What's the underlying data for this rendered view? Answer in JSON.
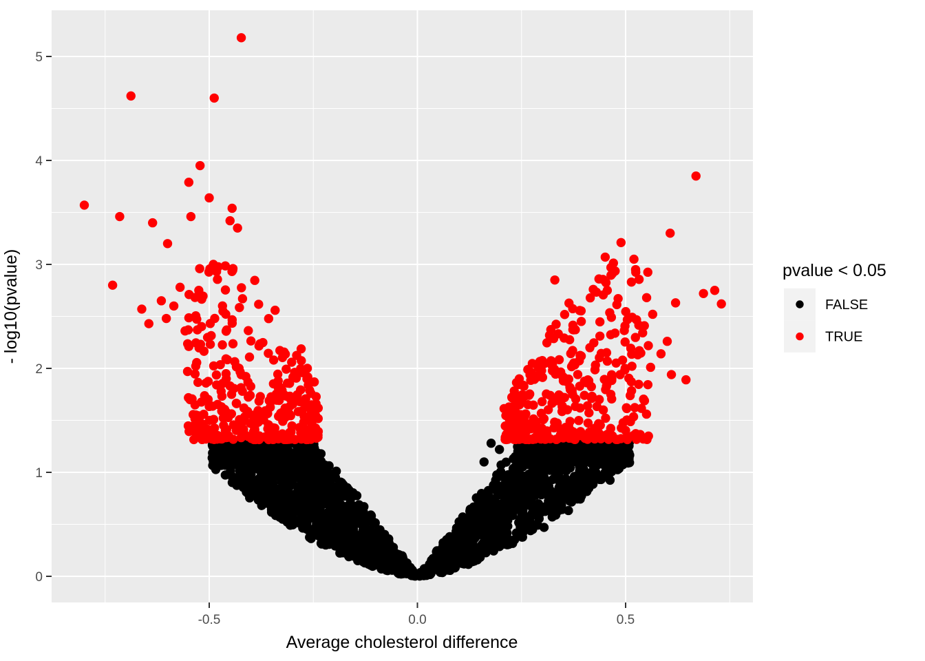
{
  "chart_data": {
    "type": "scatter",
    "title": "",
    "xlabel": "Average cholesterol difference",
    "ylabel": "- log10(pvalue)",
    "xlim": [
      -0.8785,
      0.8058
    ],
    "ylim": [
      -0.2517,
      5.4437
    ],
    "x_ticks": {
      "values": [
        -0.5,
        0.0,
        0.5
      ],
      "labels": [
        "-0.5",
        "0.0",
        "0.5"
      ]
    },
    "y_ticks": {
      "values": [
        0,
        1,
        2,
        3,
        4,
        5
      ],
      "labels": [
        "0",
        "1",
        "2",
        "3",
        "4",
        "5"
      ]
    },
    "grid": {
      "x_minor": [
        -0.75,
        -0.25,
        0.25,
        0.75
      ],
      "y_minor": [
        0.5,
        1.5,
        2.5,
        3.5,
        4.5
      ],
      "major_color": "#FFFFFF",
      "minor_color": "#FFFFFF",
      "major_width": 2,
      "minor_width": 1
    },
    "panel_background": "#EBEBEB",
    "point_radius": 6.7,
    "series": [
      {
        "name": "FALSE",
        "color": "#000000"
      },
      {
        "name": "TRUE",
        "color": "#FF0000"
      }
    ],
    "significance_cutoff": {
      "pvalue": 0.05,
      "neg_log10": 1.301
    },
    "notable_points_true": [
      [
        -0.423,
        5.18
      ],
      [
        -0.688,
        4.62
      ],
      [
        -0.488,
        4.6
      ],
      [
        -0.522,
        3.95
      ],
      [
        -0.549,
        3.79
      ],
      [
        -0.5,
        3.64
      ],
      [
        -0.445,
        3.54
      ],
      [
        -0.8,
        3.57
      ],
      [
        -0.715,
        3.46
      ],
      [
        -0.636,
        3.4
      ],
      [
        -0.544,
        3.46
      ],
      [
        -0.45,
        3.42
      ],
      [
        -0.432,
        3.35
      ],
      [
        -0.6,
        3.2
      ],
      [
        -0.732,
        2.8
      ],
      [
        -0.49,
        3.0
      ],
      [
        -0.443,
        2.96
      ],
      [
        -0.42,
        2.67
      ],
      [
        -0.57,
        2.78
      ],
      [
        -0.585,
        2.6
      ],
      [
        -0.615,
        2.65
      ],
      [
        -0.645,
        2.43
      ],
      [
        -0.662,
        2.57
      ],
      [
        -0.603,
        2.48
      ],
      [
        -0.558,
        2.36
      ],
      [
        -0.525,
        2.75
      ],
      [
        0.669,
        3.85
      ],
      [
        0.607,
        3.3
      ],
      [
        0.489,
        3.21
      ],
      [
        0.451,
        3.07
      ],
      [
        0.52,
        3.05
      ],
      [
        0.524,
        2.95
      ],
      [
        0.436,
        2.86
      ],
      [
        0.514,
        2.83
      ],
      [
        0.456,
        2.75
      ],
      [
        0.687,
        2.72
      ],
      [
        0.714,
        2.75
      ],
      [
        0.73,
        2.62
      ],
      [
        0.62,
        2.63
      ],
      [
        0.33,
        2.85
      ],
      [
        0.565,
        2.52
      ],
      [
        0.545,
        2.41
      ],
      [
        0.6,
        2.26
      ],
      [
        0.585,
        2.14
      ],
      [
        0.56,
        2.01
      ],
      [
        0.61,
        1.94
      ],
      [
        0.645,
        1.89
      ]
    ],
    "notable_points_false": [
      [
        0.177,
        1.28
      ],
      [
        0.197,
        1.22
      ],
      [
        -0.47,
        1.07
      ],
      [
        0.16,
        1.1
      ]
    ],
    "point_cloud_model": {
      "seed": 1337,
      "false_points": {
        "n": 2600,
        "abs_x_max_left": 0.493,
        "abs_x_max_right": 0.51,
        "inner_slope": 5.2,
        "outer_coef": 3.3,
        "outer_exponent": 1.6,
        "cap_y": 1.295,
        "cap_pile_depth": 0.21
      },
      "true_points": {
        "n": 700,
        "abs_x_min_left": 0.238,
        "abs_x_min_right": 0.208,
        "abs_x_max": 0.555,
        "base_y": 1.315,
        "height_slope": 6.0,
        "height_offset": -0.9,
        "y_max": 3.02
      }
    }
  },
  "legend": {
    "title": "pvalue < 0.05",
    "entries": [
      {
        "label": "FALSE",
        "color": "#000000"
      },
      {
        "label": "TRUE",
        "color": "#FF0000"
      }
    ],
    "key_background": "#F2F2F2",
    "dot_radius": 5.7
  },
  "axis_style": {
    "tick_label_color": "#4D4D4D",
    "tick_mark_color": "#333333",
    "title_color": "#000000"
  }
}
